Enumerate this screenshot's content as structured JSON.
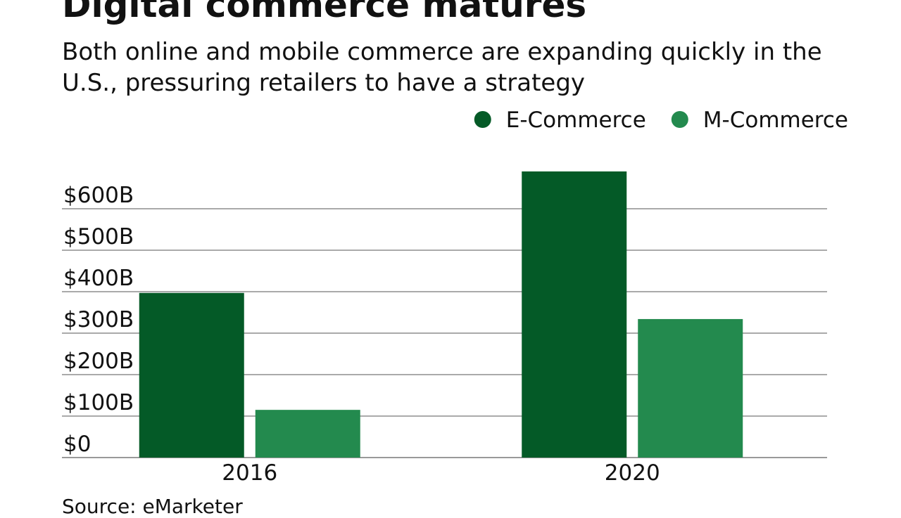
{
  "chart_data": {
    "type": "bar",
    "title": "Digital commerce matures",
    "subtitle": "Both online and mobile commerce are expanding quickly in the U.S., pressuring retailers to have a strategy",
    "source": "Source: eMarketer",
    "categories": [
      "2016",
      "2020"
    ],
    "series": [
      {
        "name": "E-Commerce",
        "color": "#045a27",
        "values": [
          397,
          690
        ]
      },
      {
        "name": "M-Commerce",
        "color": "#238a4e",
        "values": [
          115,
          334
        ]
      }
    ],
    "ylim": [
      0,
      700
    ],
    "yticks": [
      {
        "value": 0,
        "label": "$0"
      },
      {
        "value": 100,
        "label": "$100B"
      },
      {
        "value": 200,
        "label": "$200B"
      },
      {
        "value": 300,
        "label": "$300B"
      },
      {
        "value": 400,
        "label": "$400B"
      },
      {
        "value": 500,
        "label": "$500B"
      },
      {
        "value": 600,
        "label": "$600B"
      }
    ],
    "grid": true,
    "legend": "top-right"
  }
}
